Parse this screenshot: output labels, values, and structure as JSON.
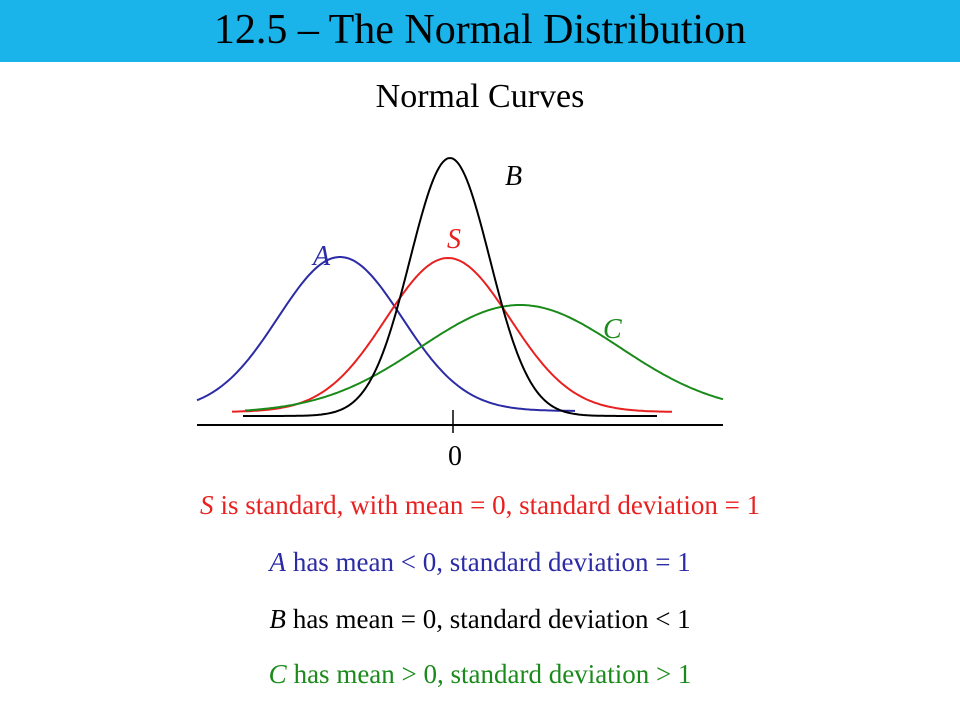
{
  "header": {
    "title": "12.5 – The Normal Distribution"
  },
  "subtitle": "Normal Curves",
  "diagram": {
    "labels": {
      "A": "A",
      "B": "B",
      "S": "S",
      "C": "C"
    },
    "axis_label": "0"
  },
  "lines": [
    {
      "letter": "S",
      "text": "is standard, with mean = 0, standard deviation = 1"
    },
    {
      "letter": "A",
      "text": "has mean < 0, standard deviation = 1"
    },
    {
      "letter": "B",
      "text": "has mean = 0, standard deviation < 1"
    },
    {
      "letter": "C",
      "text": "has mean > 0, standard deviation > 1"
    }
  ]
}
